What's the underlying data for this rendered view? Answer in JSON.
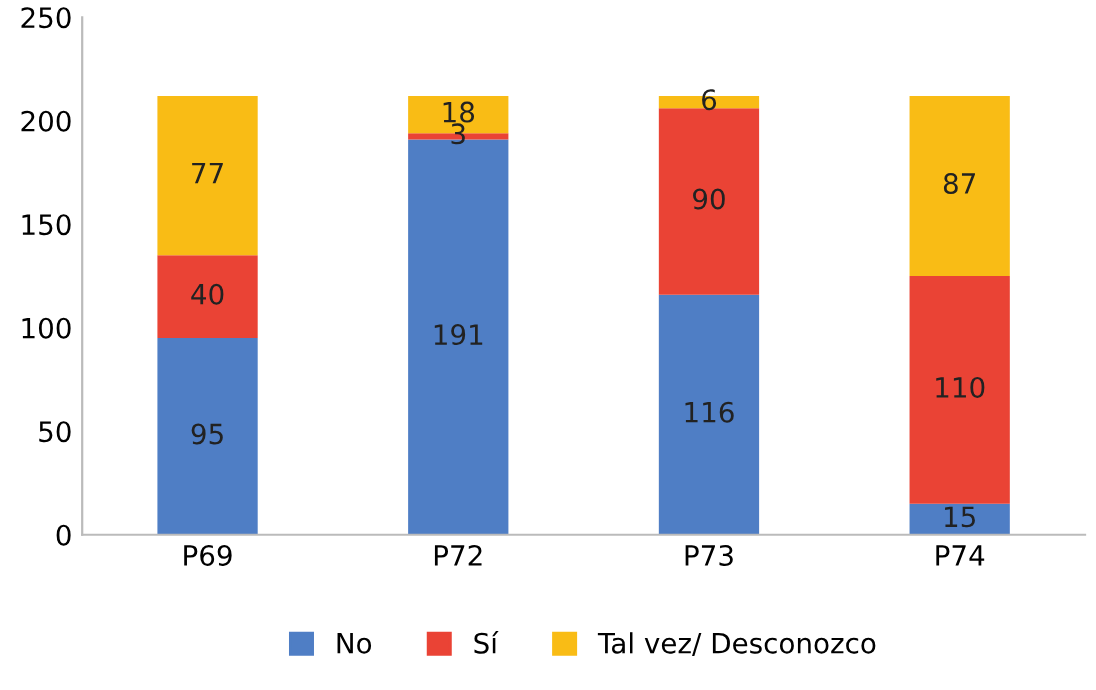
{
  "chart_data": {
    "type": "bar",
    "stacked": true,
    "categories": [
      "P69",
      "P72",
      "P73",
      "P74"
    ],
    "series": [
      {
        "name": "No",
        "color": "#4f7ec5",
        "values": [
          95,
          191,
          116,
          15
        ]
      },
      {
        "name": "Sí",
        "color": "#ea4335",
        "values": [
          40,
          3,
          90,
          110
        ]
      },
      {
        "name": "Tal vez/ Desconozco",
        "color": "#f9bc15",
        "values": [
          77,
          18,
          6,
          87
        ]
      }
    ],
    "ylim": [
      0,
      250
    ],
    "yticks": [
      0,
      50,
      100,
      150,
      200,
      250
    ],
    "grid": false,
    "legend": "bottom",
    "data_labels": true
  }
}
